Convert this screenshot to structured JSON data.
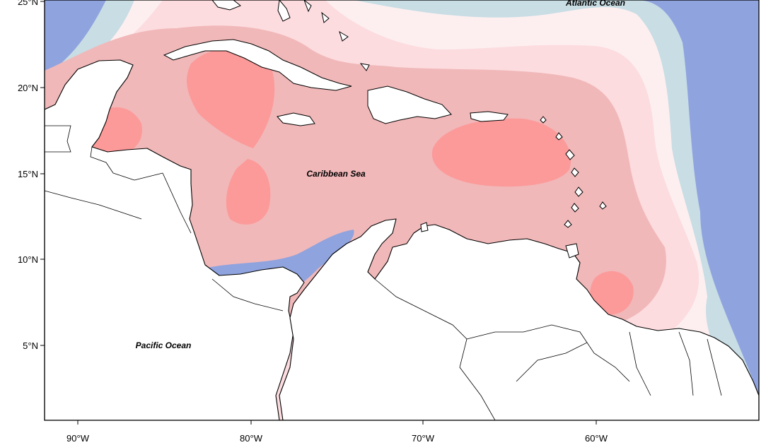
{
  "map": {
    "labels": {
      "atlantic": "Atlantic Ocean",
      "caribbean": "Caribbean Sea",
      "pacific": "Pacific Ocean"
    },
    "lat_ticks": [
      "25°N",
      "20°N",
      "15°N",
      "10°N",
      "5°N"
    ],
    "lon_ticks": [
      "90°W",
      "80°W",
      "70°W",
      "60°W"
    ],
    "colors": {
      "strong_high": "#fc9a9a",
      "high": "#f1b8b9",
      "mid_high": "#fcdcdf",
      "near_zero": "#fdeff0",
      "low": "#c8dde4",
      "strong_low": "#8fa3df",
      "land": "#ffffff"
    }
  }
}
